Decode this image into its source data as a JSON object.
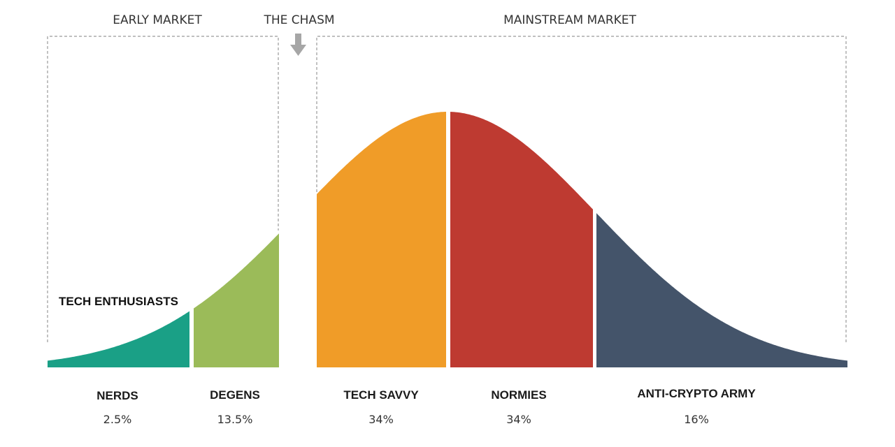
{
  "headers": {
    "early_market": "EARLY MARKET",
    "the_chasm": "THE CHASM",
    "mainstream_market": "MAINSTREAM MARKET"
  },
  "side_label": "TECH ENTHUSIASTS",
  "segments": [
    {
      "name": "NERDS",
      "percent": "2.5%",
      "color": "#1aa086"
    },
    {
      "name": "DEGENS",
      "percent": "13.5%",
      "color": "#9bbb59"
    },
    {
      "name": "TECH SAVVY",
      "percent": "34%",
      "color": "#f09c28"
    },
    {
      "name": "NORMIES",
      "percent": "34%",
      "color": "#be3a31"
    },
    {
      "name": "ANTI-CRYPTO ARMY",
      "percent": "16%",
      "color": "#44546a",
      "label_color": "#4a1210"
    }
  ],
  "colors": {
    "bracket": "#999999",
    "arrow": "#a6a6a6"
  }
}
